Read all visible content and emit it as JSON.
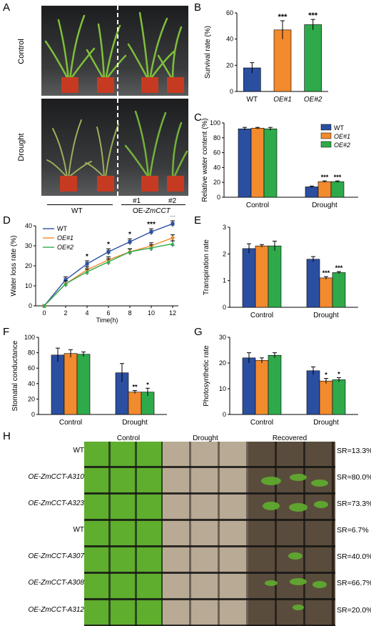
{
  "panels": {
    "A": {
      "label": "A",
      "row_labels": [
        "Control",
        "Drought"
      ],
      "line_nums": [
        "#1",
        "#2"
      ],
      "group_wt": "WT",
      "group_oe": "OE-ZmCCT",
      "group_oe_prefix": "OE-",
      "group_oe_gene": "ZmCCT"
    },
    "H": {
      "label": "H",
      "col_labels": [
        "Control",
        "Drought",
        "Recovered"
      ],
      "rows": [
        {
          "label": "WT",
          "sr": "SR=13.3%"
        },
        {
          "label": "OE-ZmCCT-A310",
          "sr": "SR=80.0%"
        },
        {
          "label": "OE-ZmCCT-A323",
          "sr": "SR=73.3%"
        },
        {
          "label": "WT",
          "sr": "SR=6.7%"
        },
        {
          "label": "OE-ZmCCT-A307",
          "sr": "SR=40.0%"
        },
        {
          "label": "OE-ZmCCT-A308",
          "sr": "SR=66.7%"
        },
        {
          "label": "OE-ZmCCT-A312",
          "sr": "SR=20.0%"
        }
      ]
    }
  },
  "colors": {
    "wt": "#2b4fa0",
    "oe1": "#f28a2e",
    "oe2": "#2eaa4a"
  },
  "chart_data": [
    {
      "id": "B",
      "type": "bar",
      "label": "B",
      "categories": [
        "WT",
        "OE#1",
        "OE#2"
      ],
      "values": [
        18,
        47,
        51
      ],
      "errors": [
        4,
        7,
        4
      ],
      "sig": [
        "",
        "***",
        "***"
      ],
      "ylabel": "Survival rate (%)",
      "ylim": [
        0,
        60
      ],
      "yticks": [
        0,
        20,
        40,
        60
      ]
    },
    {
      "id": "C",
      "type": "bar",
      "label": "C",
      "categories": [
        "Control",
        "Drought"
      ],
      "series": [
        {
          "name": "WT",
          "values": [
            92,
            14
          ],
          "errors": [
            2,
            1
          ],
          "sig": [
            "",
            ""
          ]
        },
        {
          "name": "OE#1",
          "values": [
            93,
            21
          ],
          "errors": [
            1,
            1
          ],
          "sig": [
            "",
            "***"
          ]
        },
        {
          "name": "OE#2",
          "values": [
            92,
            21
          ],
          "errors": [
            2,
            1
          ],
          "sig": [
            "",
            "***"
          ]
        }
      ],
      "ylabel": "Relative water content (%)",
      "ylim": [
        0,
        100
      ],
      "yticks": [
        0,
        20,
        40,
        60,
        80,
        100
      ],
      "legend": "right"
    },
    {
      "id": "D",
      "type": "line",
      "label": "D",
      "x": [
        0,
        2,
        4,
        6,
        8,
        10,
        12
      ],
      "series": [
        {
          "name": "WT",
          "values": [
            0,
            13,
            21,
            27,
            32,
            37,
            41
          ],
          "errors": [
            0,
            1.5,
            1.5,
            1.5,
            1.5,
            1.5,
            1.5
          ]
        },
        {
          "name": "OE#1",
          "values": [
            0,
            11,
            18,
            23,
            27,
            30,
            34
          ],
          "errors": [
            0,
            1.5,
            1.5,
            1.5,
            1.5,
            1.5,
            1.5
          ]
        },
        {
          "name": "OE#2",
          "values": [
            0,
            11,
            17,
            22,
            27,
            29,
            31
          ],
          "errors": [
            0,
            1.5,
            1.5,
            1.5,
            1.5,
            1.5,
            1.5
          ]
        }
      ],
      "sig": [
        "",
        "",
        "*",
        "*",
        "*",
        "***",
        "**"
      ],
      "xlabel": "Time(h)",
      "ylabel": "Water loss rate (%)",
      "xlim": [
        0,
        12
      ],
      "ylim": [
        0,
        40
      ],
      "yticks": [
        0,
        10,
        20,
        30,
        40
      ],
      "legend": "top-left"
    },
    {
      "id": "E",
      "type": "bar",
      "label": "E",
      "categories": [
        "Control",
        "Drought"
      ],
      "series": [
        {
          "name": "WT",
          "values": [
            2.2,
            1.8
          ],
          "errors": [
            0.18,
            0.1
          ],
          "sig": [
            "",
            ""
          ]
        },
        {
          "name": "OE#1",
          "values": [
            2.3,
            1.1
          ],
          "errors": [
            0.05,
            0.05
          ],
          "sig": [
            "",
            "***"
          ]
        },
        {
          "name": "OE#2",
          "values": [
            2.3,
            1.3
          ],
          "errors": [
            0.18,
            0.04
          ],
          "sig": [
            "",
            "***"
          ]
        }
      ],
      "ylabel": "Transpiration rate",
      "ylim": [
        0,
        3
      ],
      "yticks": [
        0,
        1,
        2,
        3
      ]
    },
    {
      "id": "F",
      "type": "bar",
      "label": "F",
      "categories": [
        "Control",
        "Drought"
      ],
      "series": [
        {
          "name": "WT",
          "values": [
            77,
            54
          ],
          "errors": [
            9,
            12
          ],
          "sig": [
            "",
            ""
          ]
        },
        {
          "name": "OE#1",
          "values": [
            79,
            29
          ],
          "errors": [
            5,
            2
          ],
          "sig": [
            "",
            "**"
          ]
        },
        {
          "name": "OE#2",
          "values": [
            78,
            29
          ],
          "errors": [
            3,
            5
          ],
          "sig": [
            "",
            "*"
          ]
        }
      ],
      "ylabel": "Stomatal conductance",
      "ylim": [
        0,
        100
      ],
      "yticks": [
        0,
        20,
        40,
        60,
        80,
        100
      ]
    },
    {
      "id": "G",
      "type": "bar",
      "label": "G",
      "categories": [
        "Control",
        "Drought"
      ],
      "series": [
        {
          "name": "WT",
          "values": [
            22,
            17
          ],
          "errors": [
            2,
            1.5
          ],
          "sig": [
            "",
            ""
          ]
        },
        {
          "name": "OE#1",
          "values": [
            21,
            13
          ],
          "errors": [
            1,
            1
          ],
          "sig": [
            "",
            "*"
          ]
        },
        {
          "name": "OE#2",
          "values": [
            23,
            13.5
          ],
          "errors": [
            1,
            0.8
          ],
          "sig": [
            "",
            "*"
          ]
        }
      ],
      "ylabel": "Photosynthetic rate",
      "ylim": [
        0,
        30
      ],
      "yticks": [
        0,
        10,
        20,
        30
      ]
    }
  ]
}
